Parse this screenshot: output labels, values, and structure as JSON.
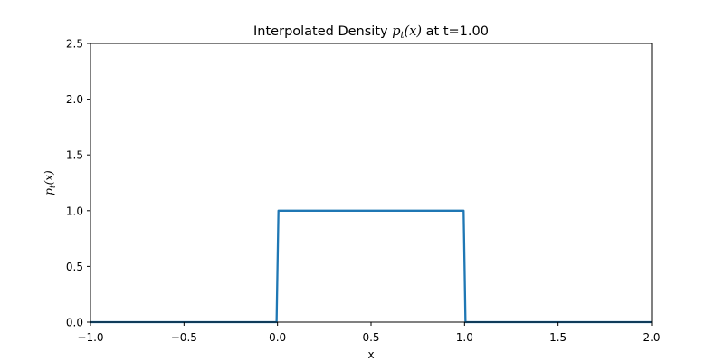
{
  "chart_data": {
    "type": "line",
    "title": {
      "prefix": "Interpolated Density ",
      "math_p": "p",
      "math_sub": "t",
      "math_args": "(x)",
      "suffix": " at t=1.00"
    },
    "xlabel": "x",
    "ylabel": {
      "p": "p",
      "sub": "t",
      "args": "(x)"
    },
    "xlim": [
      -1.0,
      2.0
    ],
    "ylim": [
      0.0,
      2.5
    ],
    "xticks": [
      -1.0,
      -0.5,
      0.0,
      0.5,
      1.0,
      1.5,
      2.0
    ],
    "xtick_labels": [
      "−1.0",
      "−0.5",
      "0.0",
      "0.5",
      "1.0",
      "1.5",
      "2.0"
    ],
    "yticks": [
      0.0,
      0.5,
      1.0,
      1.5,
      2.0,
      2.5
    ],
    "ytick_labels": [
      "0.0",
      "0.5",
      "1.0",
      "1.5",
      "2.0",
      "2.5"
    ],
    "grid": false,
    "series": [
      {
        "color": "#1f77b4",
        "x": [
          -1.0,
          -0.005,
          0.005,
          0.995,
          1.005,
          2.0
        ],
        "y": [
          0.0,
          0.0,
          1.0,
          1.0,
          0.0,
          0.0
        ]
      }
    ]
  }
}
